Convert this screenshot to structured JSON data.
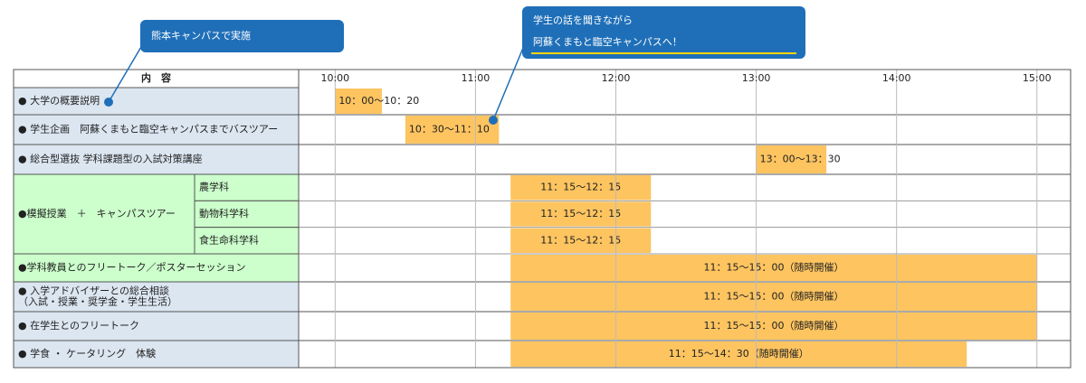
{
  "chart_data": {
    "type": "gantt",
    "header": "内　容",
    "xlim": [
      9.74,
      15.24
    ],
    "xticks": [
      {
        "value": 10,
        "label": "10:00"
      },
      {
        "value": 11,
        "label": "11:00"
      },
      {
        "value": 12,
        "label": "12:00"
      },
      {
        "value": 13,
        "label": "13:00"
      },
      {
        "value": 14,
        "label": "14:00"
      },
      {
        "value": 15,
        "label": "15:00"
      }
    ],
    "bar_color": "#fdc460",
    "rows": [
      {
        "label": "● 大学の概要説明",
        "bg": "#dce6f1",
        "start": 10,
        "end": 10.333,
        "text": "10：00〜10：20"
      },
      {
        "label": "● 学生企画　阿蘇くまもと臨空キャンパスまでバスツアー",
        "bg": "#dce6f1",
        "start": 10.5,
        "end": 11.167,
        "text": "10：30〜11：10"
      },
      {
        "label": "● 総合型選抜 学科課題型の入試対策講座",
        "bg": "#dce6f1",
        "start": 13,
        "end": 13.5,
        "text": "13：00〜13：30"
      },
      {
        "label": "●模擬授業　＋　キャンパスツアー",
        "bg": "#ccffcc",
        "sub": [
          {
            "label": "農学科",
            "start": 11.25,
            "end": 12.25,
            "text": "11：15〜12：15"
          },
          {
            "label": "動物科学科",
            "start": 11.25,
            "end": 12.25,
            "text": "11：15〜12：15"
          },
          {
            "label": "食生命科学科",
            "start": 11.25,
            "end": 12.25,
            "text": "11：15〜12：15"
          }
        ]
      },
      {
        "label": "●学科教員とのフリートーク／ポスターセッション",
        "bg": "#ccffcc",
        "start": 11.25,
        "end": 15,
        "text": "11：15〜15：00（随時開催）"
      },
      {
        "label": [
          "● 入学アドバイザーとの総合相談",
          "（入試・授業・奨学金・学生生活）"
        ],
        "bg": "#dce6f1",
        "start": 11.25,
        "end": 15,
        "text": "11：15〜15：00（随時開催）"
      },
      {
        "label": "● 在学生とのフリートーク",
        "bg": "#dce6f1",
        "start": 11.25,
        "end": 15,
        "text": "11：15〜15：00（随時開催）"
      },
      {
        "label": "● 学食 ・ ケータリング　体験",
        "bg": "#dce6f1",
        "start": 11.25,
        "end": 14.5,
        "text": "11：15〜14：30（随時開催）"
      }
    ],
    "callouts": [
      {
        "lines": [
          "熊本キャンパスで実施"
        ]
      },
      {
        "lines": [
          "学生の話を聞きながら",
          "阿蘇くまもと臨空キャンパスへ！"
        ]
      }
    ]
  }
}
